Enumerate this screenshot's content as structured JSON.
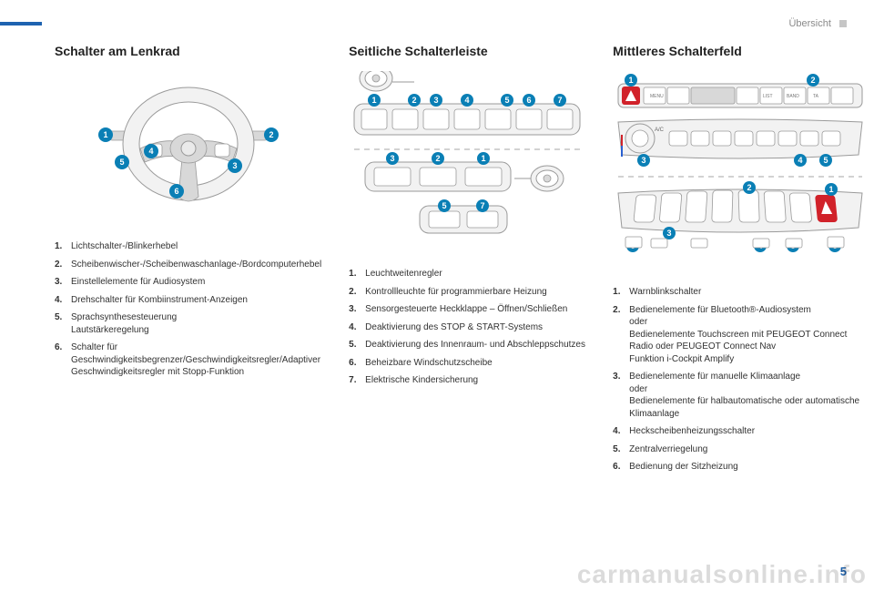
{
  "header": {
    "section": "Übersicht"
  },
  "page_number": "5",
  "watermark": "carmanualsonline.info",
  "colors": {
    "accent_blue": "#1e63b0",
    "callout_blue": "#0a7fb5",
    "panel_gray": "#f2f2f2",
    "stroke_gray": "#9a9a9a",
    "red": "#d1222a"
  },
  "columns": {
    "col1": {
      "title": "Schalter am Lenkrad",
      "items": [
        {
          "n": "1.",
          "t": "Lichtschalter-/Blinkerhebel"
        },
        {
          "n": "2.",
          "t": "Scheibenwischer-/Scheibenwaschanlage-/Bordcomputerhebel"
        },
        {
          "n": "3.",
          "t": "Einstellelemente für Audiosystem"
        },
        {
          "n": "4.",
          "t": "Drehschalter für Kombiinstrument-Anzeigen"
        },
        {
          "n": "5.",
          "t": "Sprachsynthesesteuerung\nLautstärkeregelung"
        },
        {
          "n": "6.",
          "t": "Schalter für Geschwindigkeitsbegrenzer/Geschwindigkeitsregler/Adaptiver Geschwindigkeitsregler mit Stopp-Funktion"
        }
      ]
    },
    "col2": {
      "title": "Seitliche Schalterleiste",
      "items": [
        {
          "n": "1.",
          "t": "Leuchtweitenregler"
        },
        {
          "n": "2.",
          "t": "Kontrollleuchte für programmierbare Heizung"
        },
        {
          "n": "3.",
          "t": "Sensorgesteuerte Heckklappe – Öffnen/Schließen"
        },
        {
          "n": "4.",
          "t": "Deaktivierung des STOP & START-Systems"
        },
        {
          "n": "5.",
          "t": "Deaktivierung des Innenraum- und Abschleppschutzes"
        },
        {
          "n": "6.",
          "t": "Beheizbare Windschutzscheibe"
        },
        {
          "n": "7.",
          "t": "Elektrische Kindersicherung"
        }
      ]
    },
    "col3": {
      "title": "Mittleres Schalterfeld",
      "items": [
        {
          "n": "1.",
          "t": "Warnblinkschalter"
        },
        {
          "n": "2.",
          "t": "Bedienelemente für Bluetooth®-Audiosystem\noder\nBedienelemente Touchscreen mit PEUGEOT Connect Radio oder PEUGEOT Connect Nav\nFunktion i-Cockpit Amplify"
        },
        {
          "n": "3.",
          "t": "Bedienelemente für manuelle Klimaanlage\noder\nBedienelemente für halbautomatische oder automatische Klimaanlage"
        },
        {
          "n": "4.",
          "t": "Heckscheibenheizungsschalter"
        },
        {
          "n": "5.",
          "t": "Zentralverriegelung"
        },
        {
          "n": "6.",
          "t": "Bedienung der Sitzheizung"
        }
      ]
    }
  }
}
